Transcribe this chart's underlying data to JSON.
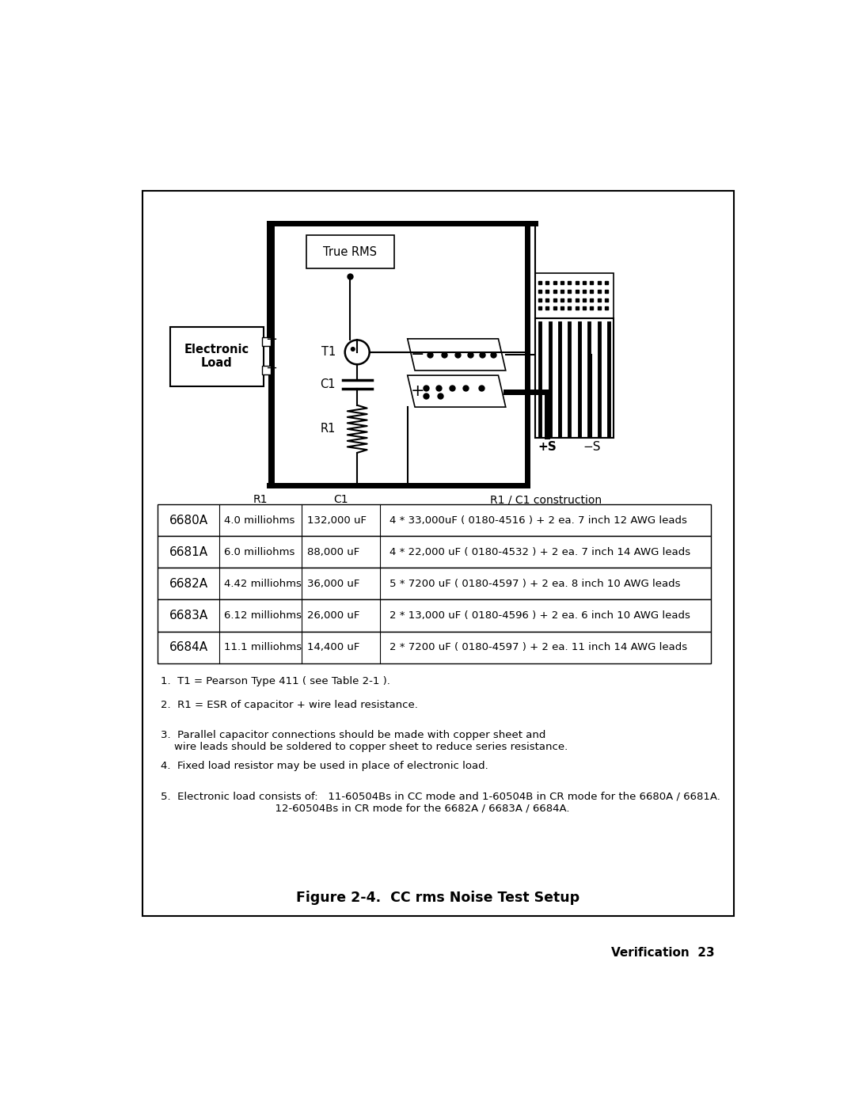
{
  "bg_color": "#ffffff",
  "border_color": "#000000",
  "title": "Figure 2-4.  CC rms Noise Test Setup",
  "page_label": "Verification  23",
  "table_header": [
    "",
    "R1",
    "C1",
    "R1 / C1 construction"
  ],
  "table_rows": [
    [
      "6680A",
      "4.0 milliohms",
      "132,000 uF",
      "4 * 33,000uF ( 0180-4516 ) + 2 ea. 7 inch 12 AWG leads"
    ],
    [
      "6681A",
      "6.0 milliohms",
      "88,000 uF",
      "4 * 22,000 uF ( 0180-4532 ) + 2 ea. 7 inch 14 AWG leads"
    ],
    [
      "6682A",
      "4.42 milliohms",
      "36,000 uF",
      "5 * 7200 uF ( 0180-4597 ) + 2 ea. 8 inch 10 AWG leads"
    ],
    [
      "6683A",
      "6.12 milliohms",
      "26,000 uF",
      "2 * 13,000 uF ( 0180-4596 ) + 2 ea. 6 inch 10 AWG leads"
    ],
    [
      "6684A",
      "11.1 milliohms",
      "14,400 uF",
      "2 * 7200 uF ( 0180-4597 ) + 2 ea. 11 inch 14 AWG leads"
    ]
  ],
  "notes": [
    "1.  T1 = Pearson Type 411 ( see Table 2-1 ).",
    "2.  R1 = ESR of capacitor + wire lead resistance.",
    "3.  Parallel capacitor connections should be made with copper sheet and\n    wire leads should be soldered to copper sheet to reduce series resistance.",
    "4.  Fixed load resistor may be used in place of electronic load.",
    "5.  Electronic load consists of:   11-60504Bs in CC mode and 1-60504B in CR mode for the 6680A / 6681A.\n                                  12-60504Bs in CR mode for the 6682A / 6683A / 6684A."
  ],
  "diagram_label_true_rms": "True RMS",
  "diagram_label_t1": "T1",
  "diagram_label_c1": "C1",
  "diagram_label_r1": "R1",
  "diagram_label_minus": "−",
  "diagram_label_plus": "+",
  "diagram_label_plus_s": "+S",
  "diagram_label_minus_s": "−S",
  "diagram_label_elec_load": "Electronic\nLoad"
}
